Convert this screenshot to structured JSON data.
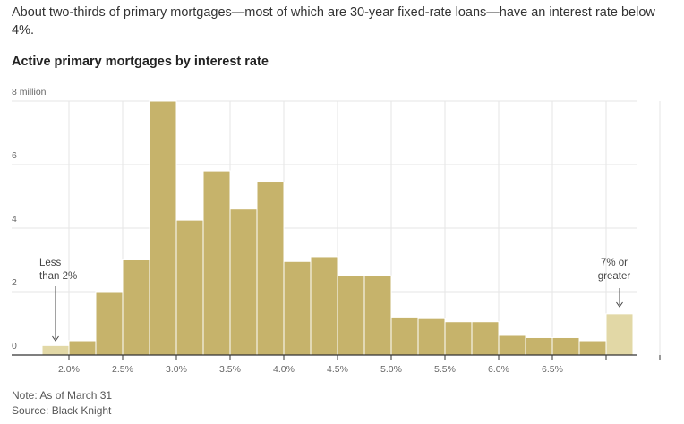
{
  "subhead": "About two-thirds of primary mortgages—most of which are 30-year fixed-rate loans—have an interest rate below 4%.",
  "note": "Note: As of March 31",
  "source": "Source: Black Knight",
  "colors": {
    "bar": "#c6b36b",
    "bar_edge": "#e2d8a6",
    "grid": "#e6e6e6",
    "axis": "#333333"
  },
  "chart_data": {
    "type": "bar",
    "title": "Active primary mortgages by interest rate",
    "xlabel": "",
    "ylabel": "",
    "ylim": [
      0,
      8
    ],
    "y_ticks": [
      {
        "value": 0,
        "label": "0"
      },
      {
        "value": 2,
        "label": "2"
      },
      {
        "value": 4,
        "label": "4"
      },
      {
        "value": 6,
        "label": "6"
      },
      {
        "value": 8,
        "label": "8 million"
      }
    ],
    "x_ticks": [
      "2.0%",
      "2.5%",
      "3.0%",
      "3.5%",
      "4.0%",
      "4.5%",
      "5.0%",
      "5.5%",
      "6.0%",
      "6.5%"
    ],
    "bin_width": 0.25,
    "edge_bins": {
      "low": {
        "label_lines": [
          "Less",
          "than 2%"
        ],
        "value": 0.3
      },
      "high": {
        "label_lines": [
          "7% or",
          "greater"
        ],
        "value": 1.3
      }
    },
    "bins": [
      {
        "start": 2.0,
        "value": 0.45
      },
      {
        "start": 2.25,
        "value": 2.0
      },
      {
        "start": 2.5,
        "value": 3.0
      },
      {
        "start": 2.75,
        "value": 8.0
      },
      {
        "start": 3.0,
        "value": 4.25
      },
      {
        "start": 3.25,
        "value": 5.8
      },
      {
        "start": 3.5,
        "value": 4.6
      },
      {
        "start": 3.75,
        "value": 5.45
      },
      {
        "start": 4.0,
        "value": 2.95
      },
      {
        "start": 4.25,
        "value": 3.1
      },
      {
        "start": 4.5,
        "value": 2.5
      },
      {
        "start": 4.75,
        "value": 2.5
      },
      {
        "start": 5.0,
        "value": 1.2
      },
      {
        "start": 5.25,
        "value": 1.15
      },
      {
        "start": 5.5,
        "value": 1.05
      },
      {
        "start": 5.75,
        "value": 1.05
      },
      {
        "start": 6.0,
        "value": 0.62
      },
      {
        "start": 6.25,
        "value": 0.55
      },
      {
        "start": 6.5,
        "value": 0.55
      },
      {
        "start": 6.75,
        "value": 0.45
      }
    ]
  }
}
